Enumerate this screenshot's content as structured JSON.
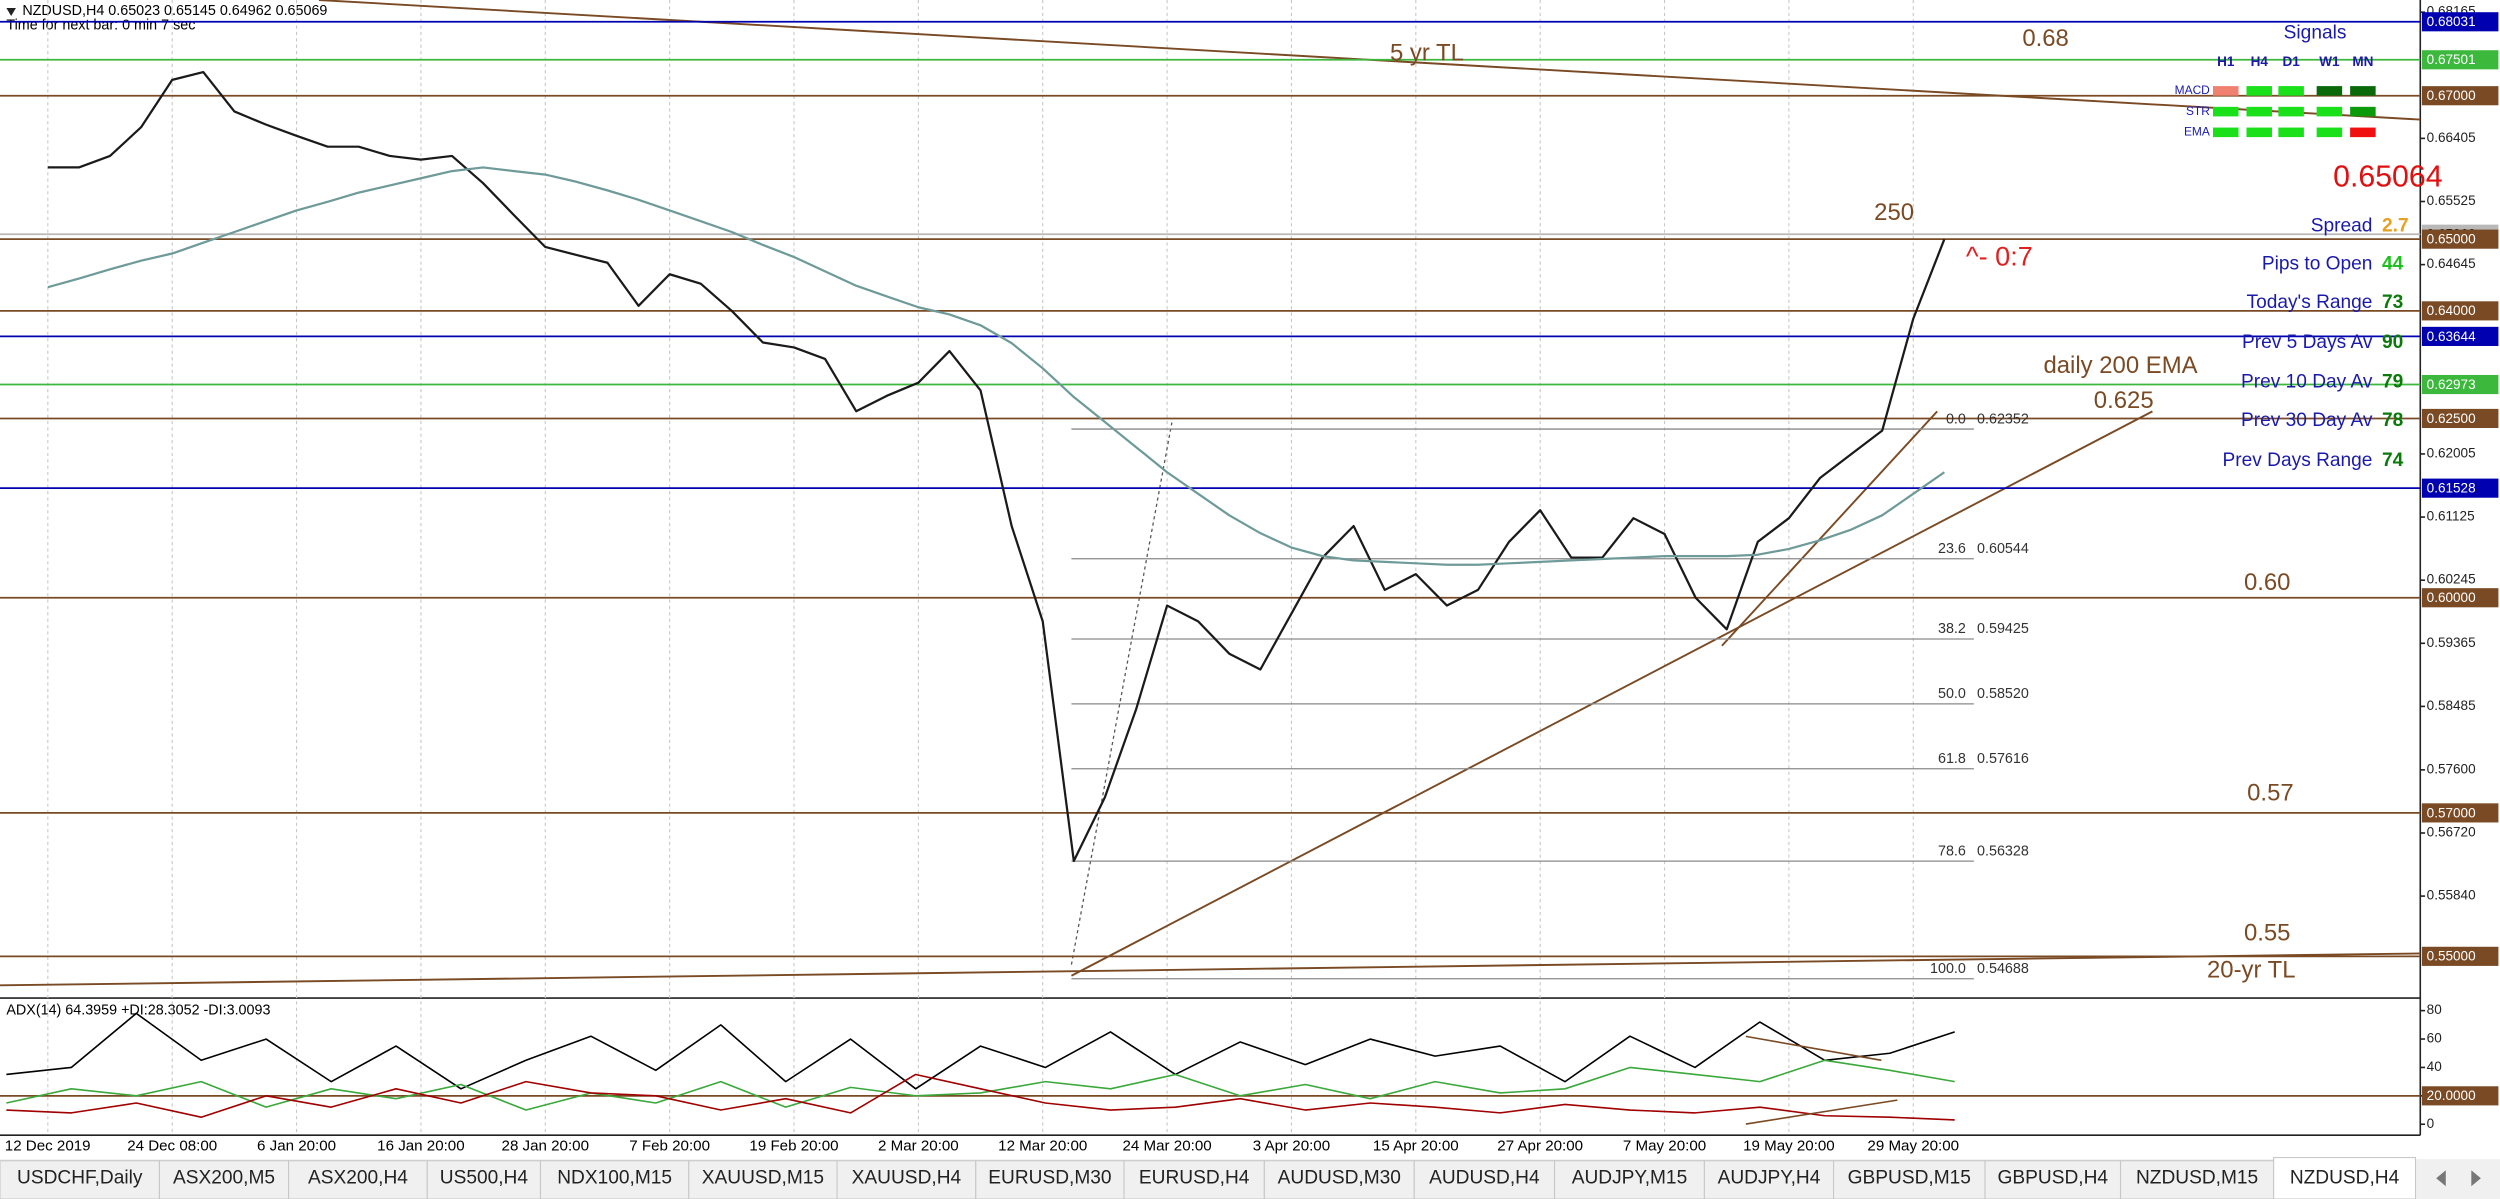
{
  "chart_data": [
    {
      "type": "line",
      "title": "NZDUSD,H4  0.65023 0.65145 0.64962 0.65069",
      "subtitle": "Time for next bar: 0 min 7 sec",
      "categories": [
        "12 Dec 2019",
        null,
        null,
        null,
        "24 Dec 08:00",
        null,
        null,
        null,
        "6 Jan 20:00",
        null,
        null,
        null,
        "16 Jan 20:00",
        null,
        null,
        null,
        "28 Jan 20:00",
        null,
        null,
        null,
        "7 Feb 20:00",
        null,
        null,
        null,
        "19 Feb 20:00",
        null,
        null,
        null,
        "2 Mar 20:00",
        null,
        null,
        null,
        "12 Mar 20:00",
        null,
        null,
        null,
        "24 Mar 20:00",
        null,
        null,
        null,
        "3 Apr 20:00",
        null,
        null,
        null,
        "15 Apr 20:00",
        null,
        null,
        null,
        "27 Apr 20:00",
        null,
        null,
        null,
        "7 May 20:00",
        null,
        null,
        null,
        "19 May 20:00",
        null,
        null,
        null,
        "29 May 20:00",
        null
      ],
      "series": [
        {
          "color": "#1a1a1a",
          "values": [
            0.66,
            0.66,
            0.6616,
            0.6656,
            0.6722,
            0.6733,
            0.6678,
            0.666,
            0.6644,
            0.6629,
            0.6629,
            0.6616,
            0.6611,
            0.6616,
            0.6578,
            0.6533,
            0.6489,
            0.6478,
            0.6467,
            0.6407,
            0.6451,
            0.6438,
            0.64,
            0.6356,
            0.6349,
            0.6333,
            0.626,
            0.6282,
            0.63,
            0.6344,
            0.6289,
            0.61,
            0.5967,
            0.5633,
            0.5722,
            0.5844,
            0.5989,
            0.5967,
            0.5922,
            0.59,
            0.5978,
            0.6056,
            0.61,
            0.6011,
            0.6033,
            0.5989,
            0.6011,
            0.6078,
            0.6122,
            0.6056,
            0.6056,
            0.6111,
            0.6089,
            0.6,
            0.5956,
            0.6078,
            0.6111,
            0.6167,
            0.62,
            0.6233,
            0.6389,
            0.65
          ]
        },
        {
          "name": "daily 200 EMA",
          "color": "#6e9a9a",
          "values": [
            0.6433,
            0.6445,
            0.6458,
            0.647,
            0.648,
            0.6495,
            0.651,
            0.6525,
            0.654,
            0.6552,
            0.6565,
            0.6575,
            0.6585,
            0.6595,
            0.66,
            0.6595,
            0.659,
            0.658,
            0.6568,
            0.6555,
            0.654,
            0.6525,
            0.651,
            0.6492,
            0.6475,
            0.6455,
            0.6435,
            0.642,
            0.6405,
            0.6395,
            0.638,
            0.6355,
            0.632,
            0.628,
            0.6245,
            0.621,
            0.6175,
            0.6145,
            0.6115,
            0.609,
            0.607,
            0.6058,
            0.6052,
            0.605,
            0.6048,
            0.6046,
            0.6046,
            0.6048,
            0.605,
            0.6052,
            0.6054,
            0.6056,
            0.6058,
            0.6058,
            0.6058,
            0.606,
            0.6068,
            0.608,
            0.6095,
            0.6115,
            0.6145,
            0.6175
          ]
        }
      ],
      "ylim": [
        0.5444,
        0.6829
      ],
      "yticks": [
        0.68165,
        0.66405,
        0.65525,
        0.64645,
        0.62005,
        0.61125,
        0.60245,
        0.59365,
        0.58485,
        {
          "value": 0.576,
          "label": "0.57600"
        },
        {
          "value": 0.5672,
          "label": "0.56720"
        },
        {
          "value": 0.5584,
          "label": "0.55840"
        }
      ],
      "levels": [
        {
          "value": 0.68031,
          "label": "0.68031",
          "color": "#0000b0"
        },
        {
          "value": 0.67501,
          "label": "0.67501",
          "color": "#3cb83c"
        },
        {
          "value": 0.67,
          "label": "0.67000",
          "color": "#7a4a24"
        },
        {
          "value": 0.65069,
          "label": "0.65069",
          "color": "#b8b8b8"
        },
        {
          "value": 0.65,
          "label": "0.65000",
          "color": "#7a4a24"
        },
        {
          "value": 0.64,
          "label": "0.64000",
          "color": "#7a4a24"
        },
        {
          "value": 0.63644,
          "label": "0.63644",
          "color": "#0000b0"
        },
        {
          "value": 0.62973,
          "label": "0.62973",
          "color": "#3cb83c"
        },
        {
          "value": 0.625,
          "label": "0.62500",
          "color": "#7a4a24"
        },
        {
          "value": 0.61528,
          "label": "0.61528",
          "color": "#0000b0"
        },
        {
          "value": 0.6,
          "label": "0.60000",
          "color": "#7a4a24"
        },
        {
          "value": 0.57,
          "label": "0.57000",
          "color": "#7a4a24"
        },
        {
          "value": 0.55,
          "label": "0.55000",
          "color": "#7a4a24"
        }
      ],
      "fib": {
        "levels": [
          "0.0",
          "23.6",
          "38.2",
          "50.0",
          "61.8",
          "78.6",
          "100.0"
        ],
        "prices": [
          0.62352,
          0.60544,
          0.59425,
          0.5852,
          0.57616,
          0.56328,
          0.54688
        ],
        "price_labels": [
          "0.62352",
          "0.60544",
          "0.59425",
          "0.58520",
          "0.57616",
          "0.56328",
          "0.54688"
        ]
      },
      "annotations": [
        {
          "text": "0.68",
          "color": "#7a4a24"
        },
        {
          "text": "5 yr TL",
          "color": "#7a4a24"
        },
        {
          "text": "250",
          "color": "#7a4a24"
        },
        {
          "text": "^- 0:7",
          "color": "#e02020"
        },
        {
          "text": "0.625",
          "color": "#7a4a24"
        },
        {
          "text": "0.60",
          "color": "#7a4a24"
        },
        {
          "text": "0.57",
          "color": "#7a4a24"
        },
        {
          "text": "0.55",
          "color": "#7a4a24"
        },
        {
          "text": "20-yr TL",
          "color": "#7a4a24"
        }
      ]
    },
    {
      "type": "line",
      "title": "ADX(14) 64.3959 +DI:28.3052 -DI:3.0093",
      "series": [
        {
          "color": "#000000",
          "values": [
            35,
            40,
            78,
            45,
            60,
            30,
            55,
            25,
            45,
            62,
            38,
            70,
            30,
            60,
            25,
            55,
            40,
            65,
            35,
            58,
            42,
            60,
            48,
            55,
            30,
            62,
            40,
            72,
            45,
            50,
            65
          ]
        },
        {
          "color": "#3aa83a",
          "values": [
            15,
            25,
            20,
            30,
            12,
            25,
            18,
            28,
            10,
            22,
            15,
            30,
            12,
            26,
            20,
            22,
            30,
            25,
            35,
            20,
            28,
            18,
            30,
            22,
            25,
            40,
            35,
            30,
            45,
            38,
            30
          ]
        },
        {
          "color": "#a00000",
          "values": [
            10,
            8,
            15,
            5,
            20,
            12,
            25,
            15,
            30,
            22,
            20,
            10,
            18,
            8,
            35,
            25,
            15,
            10,
            12,
            18,
            10,
            15,
            12,
            8,
            14,
            10,
            8,
            12,
            6,
            5,
            3
          ]
        }
      ],
      "ylim": [
        -6.6,
        87.7
      ],
      "yticks": [
        0,
        20,
        40,
        60,
        80
      ],
      "levels": [
        {
          "value": 20,
          "label": "20.0000",
          "color": "#7a4a24"
        }
      ]
    }
  ],
  "signals": {
    "title": "Signals",
    "timeframes": [
      "H1",
      "H4",
      "D1",
      "W1",
      "MN"
    ],
    "indicators": [
      "MACD",
      "STR",
      "EMA"
    ],
    "colors": [
      [
        "#f08070",
        "#19e019",
        "#19e019",
        "#0a6a0a",
        "#0a6a0a"
      ],
      [
        "#19e019",
        "#19e019",
        "#19e019",
        "#19e019",
        "#0a9a0a"
      ],
      [
        "#19e019",
        "#19e019",
        "#19e019",
        "#19e019",
        "#f01010"
      ]
    ]
  },
  "stats": {
    "price": "0.65064",
    "rows": [
      {
        "label": "Spread",
        "value": 2.7,
        "color": "#e8a020"
      },
      {
        "label": "Pips to Open",
        "value": 44,
        "color": "#20c020"
      },
      {
        "label": "Today's Range",
        "value": 73,
        "color": "#0a7a0a"
      },
      {
        "label": "Prev 5 Days Av",
        "value": 90,
        "color": "#0a7a0a"
      },
      {
        "label": "Prev 10 Day Av",
        "value": 79,
        "color": "#0a7a0a"
      },
      {
        "label": "Prev 30 Day Av",
        "value": 78,
        "color": "#0a7a0a"
      },
      {
        "label": "Prev Days Range",
        "value": 74,
        "color": "#0a7a0a"
      }
    ]
  },
  "tabs": {
    "items": [
      "USDCHF,Daily",
      "ASX200,M5",
      "ASX200,H4",
      "US500,H4",
      "NDX100,M15",
      "XAUUSD,M15",
      "XAUUSD,H4",
      "EURUSD,M30",
      "EURUSD,H4",
      "AUDUSD,M30",
      "AUDUSD,H4",
      "AUDJPY,M15",
      "AUDJPY,H4",
      "GBPUSD,M15",
      "GBPUSD,H4",
      "NZDUSD,M15",
      "NZDUSD,H4"
    ],
    "active": 16
  }
}
